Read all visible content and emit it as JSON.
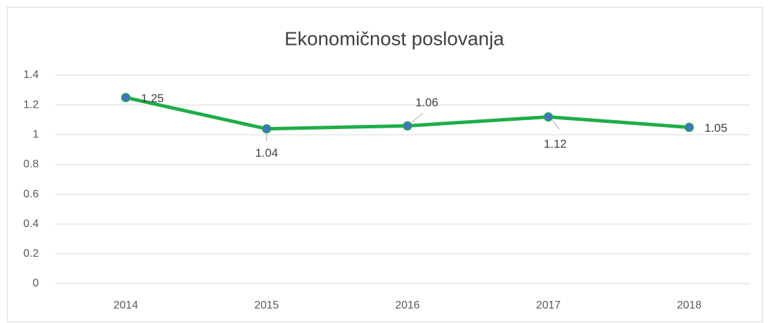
{
  "chart_data": {
    "type": "line",
    "title": "Ekonomičnost poslovanja",
    "categories": [
      "2014",
      "2015",
      "2016",
      "2017",
      "2018"
    ],
    "series": [
      {
        "name": "Ekonomičnost poslovanja",
        "color": "#1ead48",
        "marker_color": "#4472c4",
        "values": [
          1.25,
          1.04,
          1.06,
          1.12,
          1.05
        ]
      }
    ],
    "ylim": [
      0,
      1.4
    ],
    "yticks": [
      0,
      0.2,
      0.4,
      0.6,
      0.8,
      1,
      1.2,
      1.4
    ],
    "grid": true,
    "data_labels": true
  }
}
